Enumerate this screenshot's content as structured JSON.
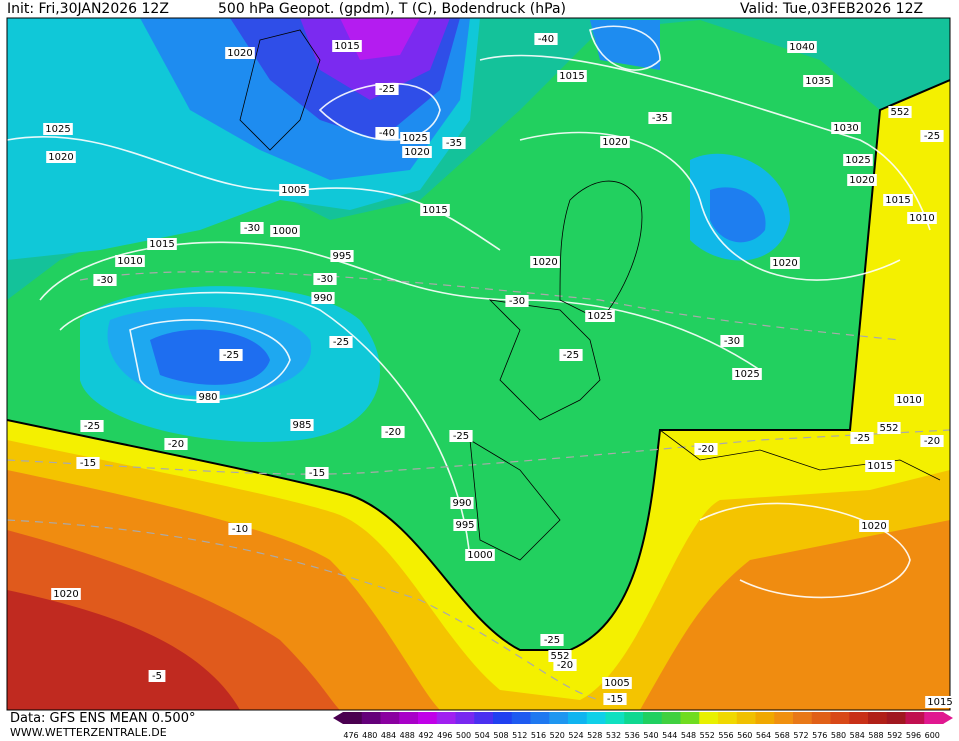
{
  "header": {
    "init": "Init: Fri,30JAN2026 12Z",
    "title": "500 hPa Geopot. (gpdm), T (C), Bodendruck (hPa)",
    "valid": "Valid: Tue,03FEB2026 12Z"
  },
  "footer": {
    "data": "Data: GFS ENS MEAN 0.500°",
    "site": "WWW.WETTERZENTRALE.DE"
  },
  "colorbar": {
    "labels": [
      476,
      480,
      484,
      488,
      492,
      496,
      500,
      504,
      508,
      512,
      516,
      520,
      524,
      528,
      532,
      536,
      540,
      544,
      548,
      552,
      556,
      560,
      564,
      568,
      572,
      576,
      580,
      584,
      588,
      592,
      596,
      600
    ]
  },
  "map": {
    "labels": [
      "1020",
      "1015",
      "-40",
      "1015",
      "1040",
      "1035",
      "552",
      "-25",
      "1030",
      "1025",
      "1020",
      "1015",
      "1010",
      "-25",
      "-40",
      "1025",
      "1020",
      "-35",
      "-35",
      "1020",
      "1025",
      "1020",
      "1005",
      "1015",
      "-30",
      "1000",
      "1015",
      "1010",
      "995",
      "-30",
      "-30",
      "990",
      "1020",
      "1020",
      "-30",
      "1025",
      "-25",
      "-25",
      "-25",
      "-30",
      "1025",
      "980",
      "1010",
      "985",
      "-25",
      "-20",
      "-25",
      "552",
      "-25",
      "-20",
      "-20",
      "-20",
      "-15",
      "-15",
      "1015",
      "990",
      "995",
      "-10",
      "1020",
      "1000",
      "1020",
      "-25",
      "552",
      "-20",
      "-5",
      "1005",
      "-15",
      "1015"
    ]
  }
}
